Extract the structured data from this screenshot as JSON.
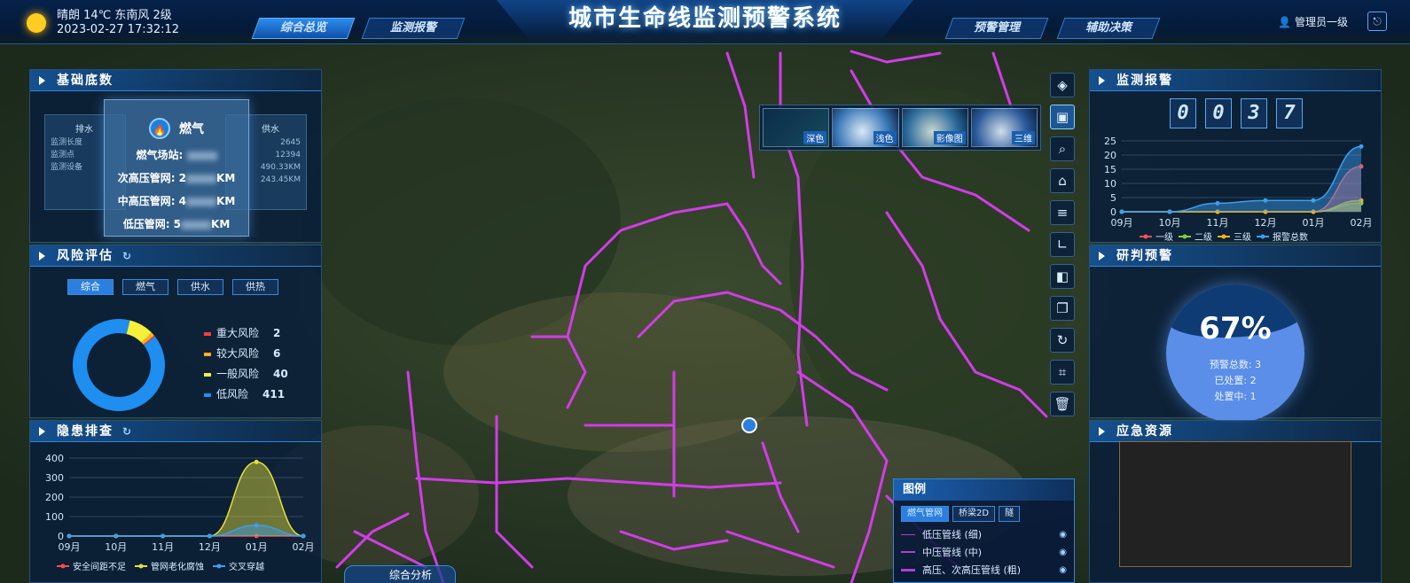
{
  "header": {
    "weather": "晴朗 14℃ 东南风 2级",
    "datetime": "2023-02-27 17:32:12",
    "title": "城市生命线监测预警系统",
    "nav": [
      "综合总览",
      "监测报警",
      "预警管理",
      "辅助决策"
    ],
    "active_nav": "综合总览",
    "user": "管理员一级"
  },
  "base_data": {
    "title": "基础底数",
    "bg_cards": [
      {
        "label": "排水",
        "lines": [
          "监测长度",
          "监测点",
          "监测设备"
        ]
      },
      {
        "label": "供水",
        "lines": [
          "2645",
          "12394",
          "490.33KM",
          "243.45KM"
        ]
      }
    ],
    "gas": {
      "label": "燃气",
      "station": "燃气场站:",
      "sub_high": "次高压管网: 2",
      "sub_high_unit": "KM",
      "mid_high": "中高压管网: 4",
      "mid_high_unit": "KM",
      "low": "低压管网: 5",
      "low_unit": "KM"
    }
  },
  "risk": {
    "title": "风险评估",
    "tabs": [
      "综合",
      "燃气",
      "供水",
      "供热"
    ],
    "active_tab": "综合",
    "items": [
      {
        "name": "重大风险",
        "value": "2",
        "color": "#ff3b3b"
      },
      {
        "name": "较大风险",
        "value": "6",
        "color": "#ffb020"
      },
      {
        "name": "一般风险",
        "value": "40",
        "color": "#f5f03a"
      },
      {
        "name": "低风险",
        "value": "411",
        "color": "#1e8ef0"
      }
    ]
  },
  "hazard": {
    "title": "隐患排查",
    "chart_data": {
      "type": "area",
      "categories": [
        "09月",
        "10月",
        "11月",
        "12月",
        "01月",
        "02月"
      ],
      "ylim": [
        0,
        400
      ],
      "yticks": [
        "0",
        "100",
        "200",
        "300",
        "400"
      ],
      "series": [
        {
          "name": "安全间距不足",
          "values": [
            0,
            0,
            0,
            0,
            0,
            0
          ],
          "color": "#ff4a4a"
        },
        {
          "name": "管网老化腐蚀",
          "values": [
            0,
            0,
            0,
            0,
            380,
            0
          ],
          "color": "#e6e13a"
        },
        {
          "name": "交叉穿越",
          "values": [
            0,
            0,
            0,
            0,
            55,
            0
          ],
          "color": "#3aa0f0"
        }
      ]
    }
  },
  "monitor": {
    "title": "监测报警",
    "counter": [
      "0",
      "0",
      "3",
      "7"
    ],
    "chart_data": {
      "type": "area",
      "categories": [
        "09月",
        "10月",
        "11月",
        "12月",
        "01月",
        "02月"
      ],
      "ylim": [
        0,
        25
      ],
      "yticks": [
        "0",
        "5",
        "10",
        "15",
        "20",
        "25"
      ],
      "series": [
        {
          "name": "一级",
          "values": [
            0,
            0,
            0,
            0,
            0,
            16
          ],
          "color": "#ff5050"
        },
        {
          "name": "二级",
          "values": [
            0,
            0,
            0,
            0,
            0,
            3
          ],
          "color": "#7cd43a"
        },
        {
          "name": "三级",
          "values": [
            0,
            0,
            0,
            0,
            0,
            4
          ],
          "color": "#ffb020"
        },
        {
          "name": "报警总数",
          "values": [
            0,
            0,
            3,
            4,
            4,
            23
          ],
          "color": "#3aa0f0"
        }
      ]
    }
  },
  "forecast": {
    "title": "研判预警",
    "percent": "67%",
    "percent_value": 0.67,
    "total": "预警总数: 3",
    "done": "已处置: 2",
    "doing": "处置中: 1"
  },
  "emergency": {
    "title": "应急资源"
  },
  "basemaps": [
    "深色",
    "浅色",
    "影像图",
    "三维"
  ],
  "toolbar": [
    "layers-icon",
    "map-switch-icon",
    "search-icon",
    "locate-icon",
    "query-icon",
    "measure-icon",
    "panel-icon",
    "window-icon",
    "refresh-icon",
    "crop-icon",
    "delete-icon"
  ],
  "legend": {
    "title": "图例",
    "tabs": [
      "燃气管网",
      "桥梁2D",
      "隧"
    ],
    "active_tab": "燃气管网",
    "rows": [
      "低压管线 (细)",
      "中压管线 (中)",
      "高压、次高压管线 (粗)"
    ]
  },
  "bottom_button": "综合分析"
}
